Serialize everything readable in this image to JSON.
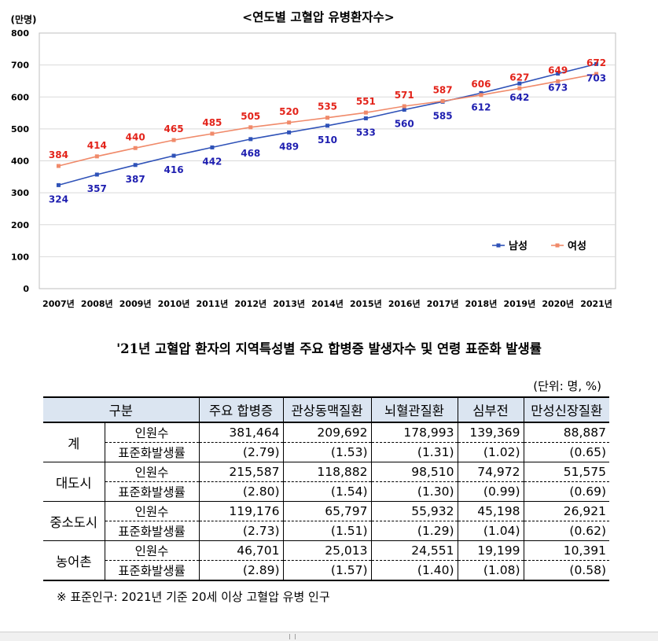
{
  "chart_data": {
    "type": "line",
    "title": "<연도별 고혈압 유병환자수>",
    "unit_label": "(만명)",
    "categories": [
      "2007년",
      "2008년",
      "2009년",
      "2010년",
      "2011년",
      "2012년",
      "2013년",
      "2014년",
      "2015년",
      "2016년",
      "2017년",
      "2018년",
      "2019년",
      "2020년",
      "2021년"
    ],
    "ylim": [
      0,
      800
    ],
    "yticks": [
      0,
      100,
      200,
      300,
      400,
      500,
      600,
      700,
      800
    ],
    "grid": true,
    "legend_position": "bottom-right",
    "series": [
      {
        "name": "남성",
        "color": "#2f52b8",
        "label_color": "#1f1fb0",
        "label_side": "below",
        "values": [
          324,
          357,
          387,
          416,
          442,
          468,
          489,
          510,
          533,
          560,
          585,
          612,
          642,
          673,
          703
        ]
      },
      {
        "name": "여성",
        "color": "#f08a6a",
        "label_color": "#e3241b",
        "label_side": "above",
        "values": [
          384,
          414,
          440,
          465,
          485,
          505,
          520,
          535,
          551,
          571,
          587,
          606,
          627,
          649,
          672
        ]
      }
    ]
  },
  "table": {
    "title": "'21년 고혈압 환자의 지역특성별 주요 합병증 발생자수 및 연령 표준화 발생률",
    "unit_note": "(단위: 명, %)",
    "headers": [
      "구분",
      "주요 합병증",
      "관상동맥질환",
      "뇌혈관질환",
      "심부전",
      "만성신장질환"
    ],
    "groups": [
      {
        "region": "계",
        "count_label": "인원수",
        "count": [
          "381,464",
          "209,692",
          "178,993",
          "139,369",
          "88,887"
        ],
        "rate_label": "표준화발생률",
        "rate": [
          "(2.79)",
          "(1.53)",
          "(1.31)",
          "(1.02)",
          "(0.65)"
        ]
      },
      {
        "region": "대도시",
        "count_label": "인원수",
        "count": [
          "215,587",
          "118,882",
          "98,510",
          "74,972",
          "51,575"
        ],
        "rate_label": "표준화발생률",
        "rate": [
          "(2.80)",
          "(1.54)",
          "(1.30)",
          "(0.99)",
          "(0.69)"
        ]
      },
      {
        "region": "중소도시",
        "count_label": "인원수",
        "count": [
          "119,176",
          "65,797",
          "55,932",
          "45,198",
          "26,921"
        ],
        "rate_label": "표준화발생률",
        "rate": [
          "(2.73)",
          "(1.51)",
          "(1.29)",
          "(1.04)",
          "(0.62)"
        ]
      },
      {
        "region": "농어촌",
        "count_label": "인원수",
        "count": [
          "46,701",
          "25,013",
          "24,551",
          "19,199",
          "10,391"
        ],
        "rate_label": "표준화발생률",
        "rate": [
          "(2.89)",
          "(1.57)",
          "(1.40)",
          "(1.08)",
          "(0.58)"
        ]
      }
    ],
    "footnote": "※ 표준인구: 2021년 기준 20세 이상 고혈압 유병 인구"
  }
}
